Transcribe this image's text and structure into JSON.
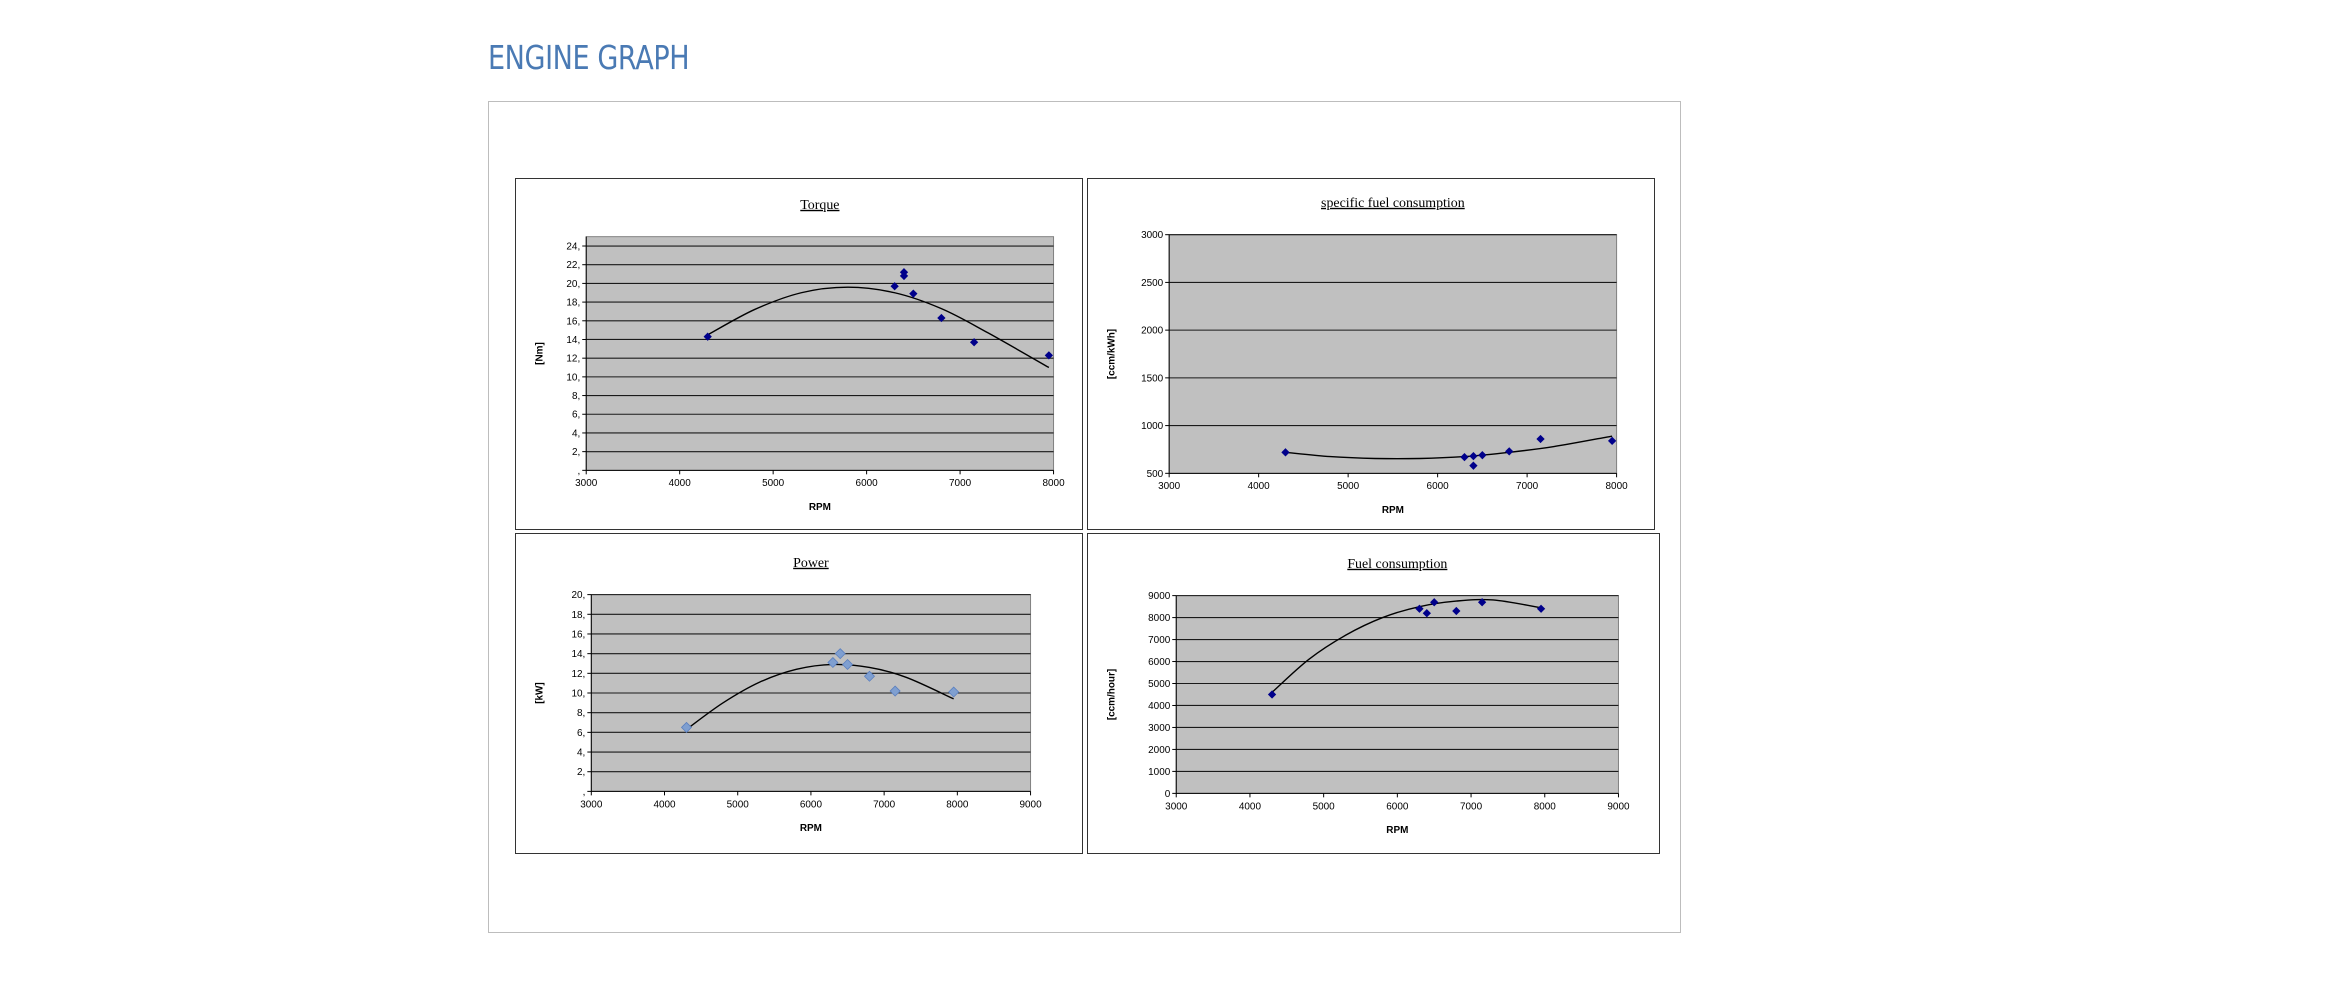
{
  "page": {
    "title": "ENGINE GRAPH"
  },
  "colors": {
    "plot_bg": "#c0c0c0",
    "grid": "#1a1a1a",
    "marker": "#00008b",
    "marker_light": "#7f9fd0",
    "curve": "#000000",
    "title_color": "#4a7ab4"
  },
  "chart_data": [
    {
      "type": "scatter",
      "title": "Torque",
      "xlabel": "RPM",
      "ylabel": "[Nm]",
      "xlim": [
        3000,
        8000
      ],
      "ylim": [
        0,
        25
      ],
      "xticks": [
        3000,
        4000,
        5000,
        6000,
        7000,
        8000
      ],
      "yticks": [
        0,
        2,
        4,
        6,
        8,
        10,
        12,
        14,
        16,
        18,
        20,
        22,
        24
      ],
      "ytick_labels": [
        ",",
        "2,",
        "4,",
        "6,",
        "8,",
        "10,",
        "12,",
        "14,",
        "16,",
        "18,",
        "20,",
        "22,",
        "24,"
      ],
      "grid": true,
      "marker": "diamond",
      "series": [
        {
          "x": [
            4300,
            6300,
            6400,
            6400,
            6500,
            6800,
            7150,
            7950
          ],
          "y": [
            14.3,
            19.7,
            20.8,
            21.2,
            18.9,
            16.3,
            13.7,
            12.3
          ]
        }
      ],
      "trendline": {
        "x": [
          4300,
          4800,
          5300,
          5800,
          6300,
          6800,
          7300,
          7950
        ],
        "y": [
          14.5,
          17.2,
          19.0,
          19.6,
          19.0,
          17.3,
          14.7,
          11.0
        ]
      }
    },
    {
      "type": "scatter",
      "title": "specific fuel consumption",
      "xlabel": "RPM",
      "ylabel": "[ccm/kWh]",
      "xlim": [
        3000,
        8000
      ],
      "ylim": [
        500,
        3000
      ],
      "xticks": [
        3000,
        4000,
        5000,
        6000,
        7000,
        8000
      ],
      "yticks": [
        500,
        1000,
        1500,
        2000,
        2500,
        3000
      ],
      "ytick_labels": [
        "500",
        "1000",
        "1500",
        "2000",
        "2500",
        "3000"
      ],
      "grid": true,
      "marker": "diamond",
      "series": [
        {
          "x": [
            4300,
            6300,
            6400,
            6400,
            6500,
            6800,
            7150,
            7950
          ],
          "y": [
            720,
            670,
            680,
            580,
            690,
            730,
            860,
            840
          ]
        }
      ],
      "trendline": {
        "x": [
          4300,
          4800,
          5300,
          5800,
          6300,
          6800,
          7300,
          7950
        ],
        "y": [
          720,
          675,
          655,
          655,
          675,
          720,
          780,
          890
        ]
      }
    },
    {
      "type": "scatter",
      "title": "Power",
      "xlabel": "RPM",
      "ylabel": "[kW]",
      "xlim": [
        3000,
        9000
      ],
      "ylim": [
        0,
        20
      ],
      "xticks": [
        3000,
        4000,
        5000,
        6000,
        7000,
        8000,
        9000
      ],
      "yticks": [
        0,
        2,
        4,
        6,
        8,
        10,
        12,
        14,
        16,
        18,
        20
      ],
      "ytick_labels": [
        ",",
        "2,",
        "4,",
        "6,",
        "8,",
        "10,",
        "12,",
        "14,",
        "16,",
        "18,",
        "20,"
      ],
      "grid": true,
      "marker": "diamond-light",
      "series": [
        {
          "x": [
            4300,
            6300,
            6400,
            6500,
            6800,
            7150,
            7950
          ],
          "y": [
            6.5,
            13.1,
            14.0,
            12.9,
            11.7,
            10.2,
            10.1
          ]
        }
      ],
      "trendline": {
        "x": [
          4300,
          4800,
          5300,
          5800,
          6300,
          6800,
          7300,
          7950
        ],
        "y": [
          6.3,
          9.0,
          11.1,
          12.4,
          12.9,
          12.6,
          11.6,
          9.4
        ]
      }
    },
    {
      "type": "scatter",
      "title": "Fuel consumption",
      "xlabel": "RPM",
      "ylabel": "[ccm/hour]",
      "xlim": [
        3000,
        9000
      ],
      "ylim": [
        0,
        9000
      ],
      "xticks": [
        3000,
        4000,
        5000,
        6000,
        7000,
        8000,
        9000
      ],
      "yticks": [
        0,
        1000,
        2000,
        3000,
        4000,
        5000,
        6000,
        7000,
        8000,
        9000
      ],
      "ytick_labels": [
        "0",
        "1000",
        "2000",
        "3000",
        "4000",
        "5000",
        "6000",
        "7000",
        "8000",
        "9000"
      ],
      "grid": true,
      "marker": "diamond",
      "series": [
        {
          "x": [
            4300,
            6300,
            6400,
            6500,
            6800,
            7150,
            7950
          ],
          "y": [
            4500,
            8400,
            8200,
            8700,
            8300,
            8700,
            8400
          ]
        }
      ],
      "trendline": {
        "x": [
          4300,
          4800,
          5300,
          5800,
          6300,
          6800,
          7300,
          7950
        ],
        "y": [
          4600,
          6100,
          7200,
          8000,
          8500,
          8750,
          8800,
          8450
        ]
      }
    }
  ]
}
